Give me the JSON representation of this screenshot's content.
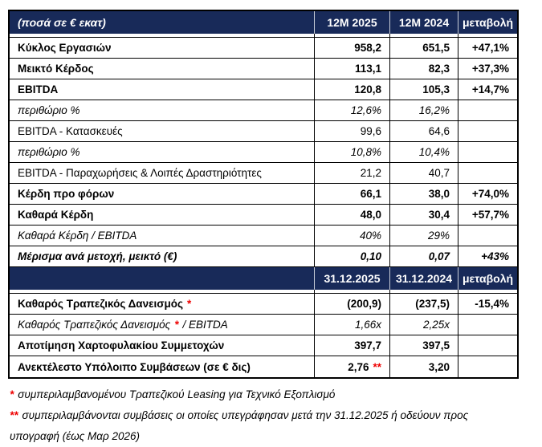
{
  "colors": {
    "header_bg": "#182a59",
    "header_text": "#ffffff",
    "accent_red": "#ee0000",
    "border": "#000000",
    "text": "#000000"
  },
  "table": {
    "section1": {
      "header": {
        "label": "(ποσά σε € εκατ)",
        "col_2025": "12M 2025",
        "col_2024": "12M 2024",
        "col_change": "μεταβολή"
      },
      "rows": [
        {
          "label": "Κύκλος Εργασιών",
          "v2025": "958,2",
          "v2024": "651,5",
          "change": "+47,1%",
          "style": "bold"
        },
        {
          "label": "Μεικτό Κέρδος",
          "v2025": "113,1",
          "v2024": "82,3",
          "change": "+37,3%",
          "style": "bold"
        },
        {
          "label": "EBITDA",
          "v2025": "120,8",
          "v2024": "105,3",
          "change": "+14,7%",
          "style": "bold"
        },
        {
          "label": "περιθώριο %",
          "v2025": "12,6%",
          "v2024": "16,2%",
          "change": "",
          "style": "italic"
        },
        {
          "label": "EBITDA - Κατασκευές",
          "v2025": "99,6",
          "v2024": "64,6",
          "change": "",
          "style": "regular"
        },
        {
          "label": "περιθώριο %",
          "v2025": "10,8%",
          "v2024": "10,4%",
          "change": "",
          "style": "italic"
        },
        {
          "label": "EBITDA - Παραχωρήσεις & Λοιπές Δραστηριότητες",
          "v2025": "21,2",
          "v2024": "40,7",
          "change": "",
          "style": "regular"
        },
        {
          "label": "Κέρδη προ φόρων",
          "v2025": "66,1",
          "v2024": "38,0",
          "change": "+74,0%",
          "style": "bold"
        },
        {
          "label": "Καθαρά Κέρδη",
          "v2025": "48,0",
          "v2024": "30,4",
          "change": "+57,7%",
          "style": "bold"
        },
        {
          "label": "Καθαρά Κέρδη / EBITDA",
          "v2025": "40%",
          "v2024": "29%",
          "change": "",
          "style": "italic"
        },
        {
          "label": "Μέρισμα ανά μετοχή, μεικτό (€)",
          "v2025": "0,10",
          "v2024": "0,07",
          "change": "+43%",
          "style": "bold-italic"
        }
      ]
    },
    "section2": {
      "header": {
        "label": "",
        "col_2025": "31.12.2025",
        "col_2024": "31.12.2024",
        "col_change": "μεταβολή"
      },
      "rows": [
        {
          "label": "Καθαρός Τραπεζικός Δανεισμός",
          "label_mark": "*",
          "v2025": "(200,9)",
          "v2024": "(237,5)",
          "change": "-15,4%",
          "style": "bold"
        },
        {
          "label": "Καθαρός Τραπεζικός Δανεισμός",
          "label_mark": "*",
          "label_after": "/ EBITDA",
          "v2025": "1,66x",
          "v2024": "2,25x",
          "change": "",
          "style": "italic"
        },
        {
          "label": "Αποτίμηση Χαρτοφυλακίου Συμμετοχών",
          "v2025": "397,7",
          "v2024": "397,5",
          "change": "",
          "style": "bold"
        },
        {
          "label": "Ανεκτέλεστο Υπόλοιπο Συμβάσεων (σε € δις)",
          "v2025": "2,76",
          "v2025_mark": "**",
          "v2024": "3,20",
          "change": "",
          "style": "bold"
        }
      ]
    },
    "footnotes": [
      {
        "mark": "*",
        "text": "συμπεριλαμβανομένου Τραπεζικού Leasing για Τεχνικό Εξοπλισμό"
      },
      {
        "mark": "**",
        "text": "συμπεριλαμβάνονται συμβάσεις οι οποίες υπεγράφησαν μετά την 31.12.2025 ή οδεύουν προς υπογραφή (έως Μαρ 2026)"
      }
    ]
  }
}
